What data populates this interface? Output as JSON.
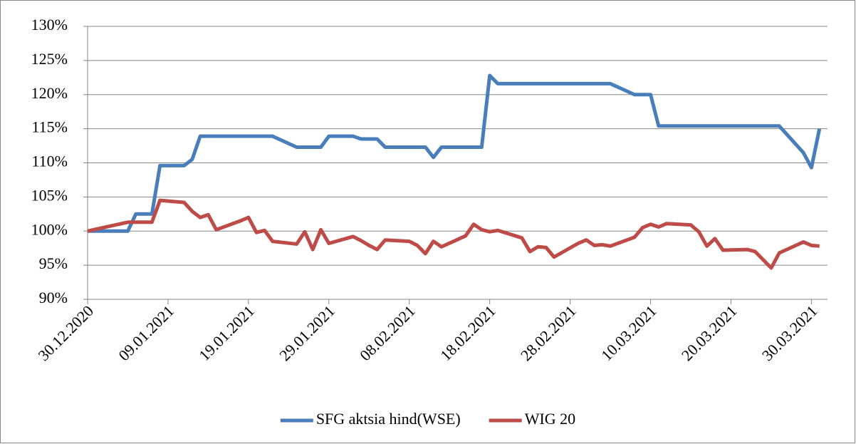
{
  "chart_data": {
    "type": "line",
    "x": [
      "30.12.2020",
      "04.01.2021",
      "05.01.2021",
      "07.01.2021",
      "08.01.2021",
      "11.01.2021",
      "12.01.2021",
      "13.01.2021",
      "14.01.2021",
      "15.01.2021",
      "18.01.2021",
      "19.01.2021",
      "20.01.2021",
      "21.01.2021",
      "22.01.2021",
      "25.01.2021",
      "26.01.2021",
      "27.01.2021",
      "28.01.2021",
      "29.01.2021",
      "01.02.2021",
      "02.02.2021",
      "03.02.2021",
      "04.02.2021",
      "05.02.2021",
      "08.02.2021",
      "09.02.2021",
      "10.02.2021",
      "11.02.2021",
      "12.02.2021",
      "15.02.2021",
      "16.02.2021",
      "17.02.2021",
      "18.02.2021",
      "19.02.2021",
      "22.02.2021",
      "23.02.2021",
      "24.02.2021",
      "25.02.2021",
      "26.02.2021",
      "01.03.2021",
      "02.03.2021",
      "03.03.2021",
      "04.03.2021",
      "05.03.2021",
      "08.03.2021",
      "09.03.2021",
      "10.03.2021",
      "11.03.2021",
      "12.03.2021",
      "15.03.2021",
      "16.03.2021",
      "17.03.2021",
      "18.03.2021",
      "19.03.2021",
      "22.03.2021",
      "23.03.2021",
      "24.03.2021",
      "25.03.2021",
      "26.03.2021",
      "29.03.2021",
      "30.03.2021",
      "31.03.2021"
    ],
    "series": [
      {
        "name": "SFG aktsia hind(WSE)",
        "color": "#4a7ebb",
        "values": [
          100,
          100,
          102.5,
          102.5,
          109.6,
          109.6,
          110.5,
          113.9,
          113.9,
          113.9,
          113.9,
          113.9,
          113.9,
          113.9,
          113.9,
          112.3,
          112.3,
          112.3,
          112.3,
          113.9,
          113.9,
          113.5,
          113.5,
          113.5,
          112.3,
          112.3,
          112.3,
          112.3,
          110.8,
          112.3,
          112.3,
          112.3,
          112.3,
          122.8,
          121.6,
          121.6,
          121.6,
          121.6,
          121.6,
          121.6,
          121.6,
          121.6,
          121.6,
          121.6,
          121.6,
          120,
          120,
          120,
          115.4,
          115.4,
          115.4,
          115.4,
          115.4,
          115.4,
          115.4,
          115.4,
          115.4,
          115.4,
          115.4,
          115.4,
          111.5,
          109.3,
          115
        ]
      },
      {
        "name": "WIG 20",
        "color": "#be4b48",
        "values": [
          100,
          101.3,
          101.3,
          101.3,
          104.5,
          104.2,
          102.9,
          102.0,
          102.4,
          100.2,
          101.5,
          102.0,
          99.8,
          100.1,
          98.5,
          98.1,
          99.9,
          97.3,
          100.2,
          98.2,
          99.2,
          98.6,
          97.9,
          97.3,
          98.7,
          98.5,
          97.9,
          96.7,
          98.5,
          97.7,
          99.3,
          101.0,
          100.2,
          99.9,
          100.1,
          99.0,
          97.0,
          97.7,
          97.6,
          96.2,
          98.2,
          98.7,
          97.9,
          98.0,
          97.8,
          99.1,
          100.5,
          101.0,
          100.6,
          101.1,
          100.9,
          99.9,
          97.8,
          98.9,
          97.2,
          97.3,
          97.0,
          95.8,
          94.6,
          96.8,
          98.4,
          97.9,
          97.8
        ]
      }
    ],
    "xlim": [
      "30.12.2020",
      "01.04.2021"
    ],
    "xticks": [
      "30.12.2020",
      "09.01.2021",
      "19.01.2021",
      "29.01.2021",
      "08.02.2021",
      "18.02.2021",
      "28.02.2021",
      "10.03.2021",
      "20.03.2021",
      "30.03.2021"
    ],
    "ylim": [
      90,
      130
    ],
    "yticks": [
      {
        "value": 90,
        "label": "90%"
      },
      {
        "value": 95,
        "label": "95%"
      },
      {
        "value": 100,
        "label": "100%"
      },
      {
        "value": 105,
        "label": "105%"
      },
      {
        "value": 110,
        "label": "110%"
      },
      {
        "value": 115,
        "label": "115%"
      },
      {
        "value": 120,
        "label": "120%"
      },
      {
        "value": 125,
        "label": "125%"
      },
      {
        "value": 130,
        "label": "130%"
      }
    ],
    "grid": true,
    "legend": "bottom"
  }
}
